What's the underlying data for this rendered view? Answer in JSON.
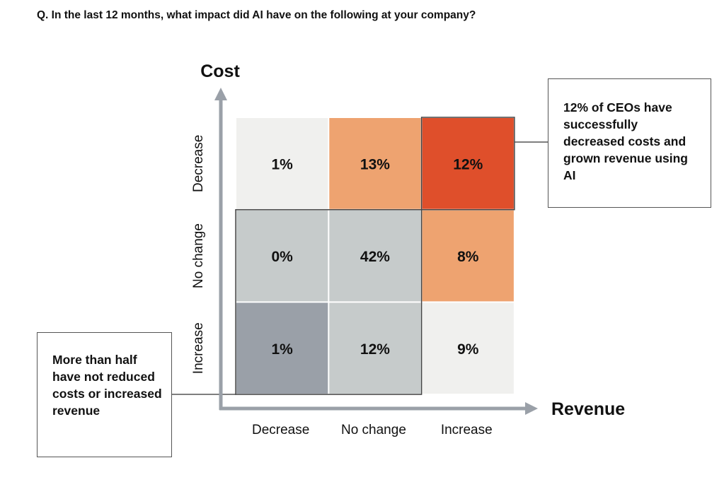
{
  "question": "Q. In the last 12 months, what impact did AI have on the following at your company?",
  "chart_data": {
    "type": "heatmap",
    "title": "",
    "ylabel": "Cost",
    "xlabel": "Revenue",
    "x_categories": [
      "Decrease",
      "No change",
      "Increase"
    ],
    "y_categories": [
      "Decrease",
      "No change",
      "Increase"
    ],
    "cells": [
      {
        "cost": "Decrease",
        "revenue": "Decrease",
        "value": 1,
        "label": "1%",
        "color": "#f0f0ee"
      },
      {
        "cost": "Decrease",
        "revenue": "No change",
        "value": 13,
        "label": "13%",
        "color": "#eea370"
      },
      {
        "cost": "Decrease",
        "revenue": "Increase",
        "value": 12,
        "label": "12%",
        "color": "#df4f2b"
      },
      {
        "cost": "No change",
        "revenue": "Decrease",
        "value": 0,
        "label": "0%",
        "color": "#c6cbcb"
      },
      {
        "cost": "No change",
        "revenue": "No change",
        "value": 42,
        "label": "42%",
        "color": "#c6cbcb"
      },
      {
        "cost": "No change",
        "revenue": "Increase",
        "value": 8,
        "label": "8%",
        "color": "#eea370"
      },
      {
        "cost": "Increase",
        "revenue": "Decrease",
        "value": 1,
        "label": "1%",
        "color": "#9aa0a8"
      },
      {
        "cost": "Increase",
        "revenue": "No change",
        "value": 12,
        "label": "12%",
        "color": "#c6cbcb"
      },
      {
        "cost": "Increase",
        "revenue": "Increase",
        "value": 9,
        "label": "9%",
        "color": "#f0f0ee"
      }
    ],
    "axis_color": "#9aa0a8",
    "annotations": [
      {
        "text": "12% of CEOs have successfully decreased costs and grown revenue using AI",
        "target": "Cost Decrease / Revenue Increase"
      },
      {
        "text": "More than half have not reduced costs or increased revenue",
        "target": "Cost No change or Increase / Revenue Decrease or No change"
      }
    ]
  }
}
